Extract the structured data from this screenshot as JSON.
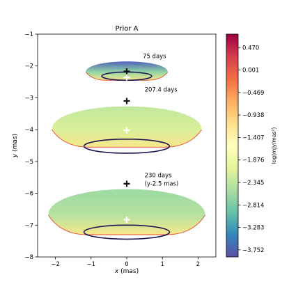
{
  "chart_data": {
    "type": "heatmap",
    "title": "Prior A",
    "xlabel_var": "x",
    "xlabel_unit": " (mas)",
    "ylabel_var": "y",
    "ylabel_unit": " (mas)",
    "xlim": [
      -2.5,
      2.5
    ],
    "ylim": [
      -8,
      -1
    ],
    "xticks": [
      -2,
      -1,
      0,
      1,
      2
    ],
    "yticks": [
      -1,
      -2,
      -3,
      -4,
      -5,
      -6,
      -7,
      -8
    ],
    "grid": false,
    "colorbar": {
      "label": "log(mJy/mas²)",
      "range": [
        -3.9,
        0.75
      ],
      "ticks": [
        "0.470",
        "0.001",
        "−0.469",
        "−0.938",
        "−1.407",
        "−1.876",
        "−2.345",
        "−2.814",
        "−3.283",
        "−3.752"
      ],
      "tick_values": [
        0.47,
        0.001,
        -0.469,
        -0.938,
        -1.407,
        -1.876,
        -2.345,
        -2.814,
        -3.283,
        -3.752
      ],
      "colormap": "Spectral_r"
    },
    "panels": [
      {
        "label": "75 days",
        "label_pos": [
          0.45,
          -1.75
        ],
        "cap_center": [
          0,
          -2.38
        ],
        "cap_halfwidth": 1.15,
        "cap_top": -1.78,
        "cap_bottom": -2.45,
        "ring": {
          "cx": 0,
          "cy": -2.32,
          "rx": 0.7,
          "ry": 0.13
        },
        "black_cross": [
          0,
          -2.17
        ],
        "white_cross": [
          0,
          -2.36
        ],
        "color_top": "#4f62ba",
        "color_mid": "#8fd4a4",
        "color_base": "#f7e78b"
      },
      {
        "label": "207.4 days",
        "label_pos": [
          0.5,
          -2.8
        ],
        "cap_halfwidth": 2.1,
        "cap_top": -3.1,
        "cap_bottom": -4.55,
        "ring": {
          "cx": 0,
          "cy": -4.52,
          "rx": 1.2,
          "ry": 0.22
        },
        "black_cross": [
          0,
          -3.1
        ],
        "white_cross": [
          0,
          -4.02
        ],
        "color_top": "#bfe79c",
        "color_mid": "#d9ef9a",
        "color_base": "#f7e78b"
      },
      {
        "label": "230 days",
        "label_sub": "(y-2.5 mas)",
        "label_pos": [
          0.5,
          -5.5
        ],
        "cap_halfwidth": 2.2,
        "cap_top": -5.68,
        "cap_bottom": -7.3,
        "ring": {
          "cx": 0,
          "cy": -7.22,
          "rx": 1.2,
          "ry": 0.22
        },
        "black_cross": [
          0,
          -5.7
        ],
        "white_cross": [
          0,
          -6.83
        ],
        "color_top": "#9cdaa4",
        "color_mid": "#b4e29f",
        "color_base": "#f7e78b"
      }
    ]
  }
}
